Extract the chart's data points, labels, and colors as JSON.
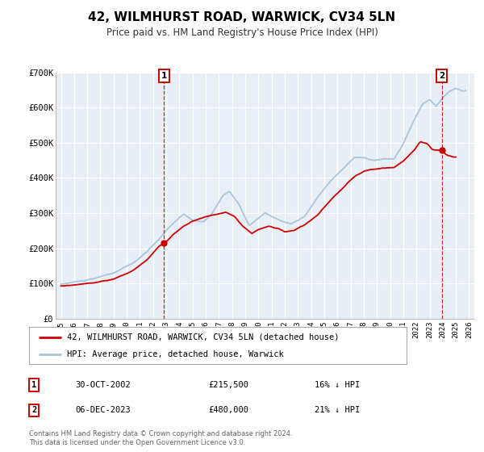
{
  "title": "42, WILMHURST ROAD, WARWICK, CV34 5LN",
  "subtitle": "Price paid vs. HM Land Registry's House Price Index (HPI)",
  "ylim": [
    0,
    700000
  ],
  "xlim": [
    1994.6,
    2026.4
  ],
  "yticks": [
    0,
    100000,
    200000,
    300000,
    400000,
    500000,
    600000,
    700000
  ],
  "ytick_labels": [
    "£0",
    "£100K",
    "£200K",
    "£300K",
    "£400K",
    "£500K",
    "£600K",
    "£700K"
  ],
  "xticks": [
    1995,
    1996,
    1997,
    1998,
    1999,
    2000,
    2001,
    2002,
    2003,
    2004,
    2005,
    2006,
    2007,
    2008,
    2009,
    2010,
    2011,
    2012,
    2013,
    2014,
    2015,
    2016,
    2017,
    2018,
    2019,
    2020,
    2021,
    2022,
    2023,
    2024,
    2025,
    2026
  ],
  "hpi_color": "#a8c5da",
  "price_color": "#cc0000",
  "marker1_date": 2002.83,
  "marker1_price": 215500,
  "marker1_label": "30-OCT-2002",
  "marker1_amount": "£215,500",
  "marker1_hpi": "16% ↓ HPI",
  "marker2_date": 2023.92,
  "marker2_price": 480000,
  "marker2_label": "06-DEC-2023",
  "marker2_amount": "£480,000",
  "marker2_hpi": "21% ↓ HPI",
  "legend_label1": "42, WILMHURST ROAD, WARWICK, CV34 5LN (detached house)",
  "legend_label2": "HPI: Average price, detached house, Warwick",
  "footnote": "Contains HM Land Registry data © Crown copyright and database right 2024.\nThis data is licensed under the Open Government Licence v3.0.",
  "plot_bg_color": "#e8eef5"
}
